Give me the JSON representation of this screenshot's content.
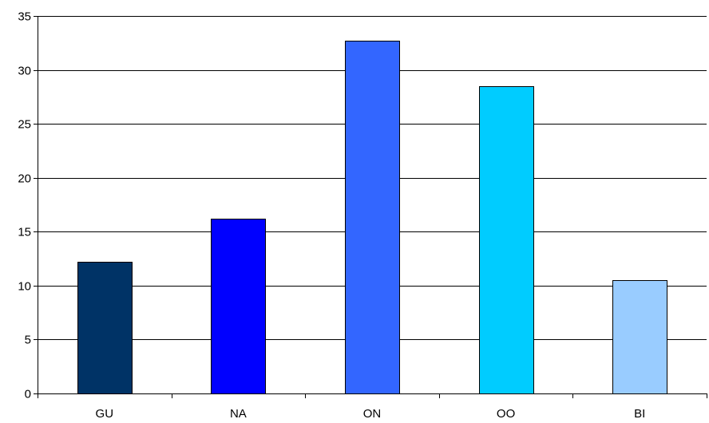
{
  "chart_data": {
    "type": "bar",
    "categories": [
      "GU",
      "NA",
      "ON",
      "OO",
      "BI"
    ],
    "values": [
      12.2,
      16.2,
      32.7,
      28.5,
      10.5
    ],
    "colors": [
      "#003366",
      "#0000ff",
      "#3366ff",
      "#00ccff",
      "#99ccff"
    ],
    "ylim": [
      0,
      35
    ],
    "yticks": [
      "0",
      "5",
      "10",
      "15",
      "20",
      "25",
      "30",
      "35"
    ],
    "grid": true,
    "legend": "none"
  }
}
